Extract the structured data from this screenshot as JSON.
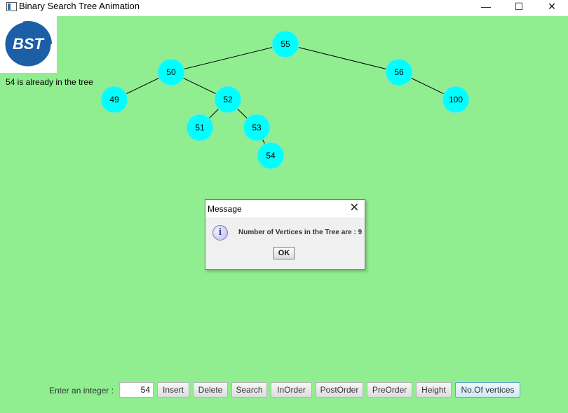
{
  "window": {
    "title": "Binary Search Tree Animation",
    "controls": {
      "minimize": "—",
      "maximize": "☐",
      "close": "✕"
    }
  },
  "logo": {
    "text": "BST",
    "colors": {
      "ring": "#1d5fa6",
      "text": "#ffffff"
    }
  },
  "status_text": "54 is already in the tree",
  "tree": {
    "node_color": "#00ffff",
    "nodes": [
      {
        "id": "n55",
        "label": "55"
      },
      {
        "id": "n50",
        "label": "50"
      },
      {
        "id": "n56",
        "label": "56"
      },
      {
        "id": "n49",
        "label": "49"
      },
      {
        "id": "n52",
        "label": "52"
      },
      {
        "id": "n100",
        "label": "100"
      },
      {
        "id": "n51",
        "label": "51"
      },
      {
        "id": "n53",
        "label": "53"
      },
      {
        "id": "n54",
        "label": "54"
      }
    ],
    "edges": [
      [
        "n55",
        "n50"
      ],
      [
        "n55",
        "n56"
      ],
      [
        "n50",
        "n49"
      ],
      [
        "n50",
        "n52"
      ],
      [
        "n56",
        "n100"
      ],
      [
        "n52",
        "n51"
      ],
      [
        "n52",
        "n53"
      ],
      [
        "n53",
        "n54"
      ]
    ]
  },
  "dialog": {
    "title": "Message",
    "icon": "info-icon",
    "message": "Number of Vertices in the Tree are : 9",
    "ok_label": "OK"
  },
  "controls": {
    "prompt_label": "Enter an integer :",
    "input_value": "54",
    "buttons": {
      "insert": "Insert",
      "delete": "Delete",
      "search": "Search",
      "inorder": "InOrder",
      "postorder": "PostOrder",
      "preorder": "PreOrder",
      "height": "Height",
      "vertices": "No.Of vertices"
    }
  },
  "colors": {
    "canvas_bg": "#90ee90",
    "node_fill": "#00ffff"
  }
}
